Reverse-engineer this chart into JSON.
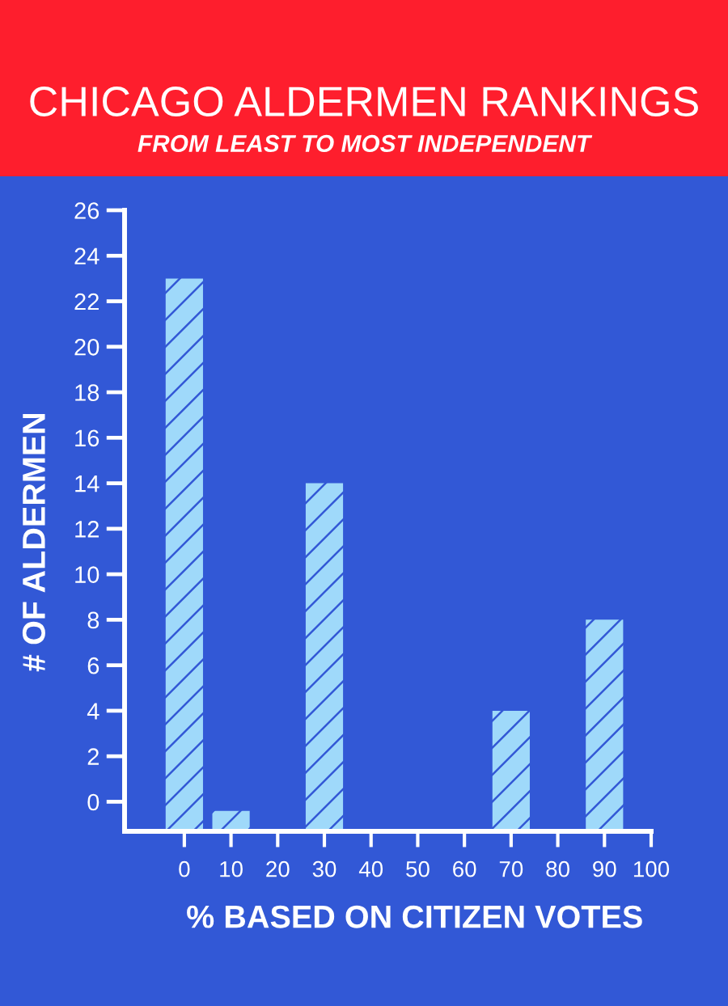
{
  "chart_data": {
    "type": "bar",
    "title": "CHICAGO ALDERMEN RANKINGS",
    "subtitle": "FROM LEAST TO MOST INDEPENDENT",
    "xlabel": "% BASED ON CITIZEN VOTES",
    "ylabel": "# OF ALDERMEN",
    "x": [
      0,
      10,
      30,
      70,
      90
    ],
    "values": [
      24.2,
      0.8,
      15.2,
      5.2,
      9.2
    ],
    "base": [
      -1.2,
      -1.2,
      -1.2,
      -1.2,
      -1.2
    ],
    "color": "#9fd9fa",
    "xlim": [
      -12.8,
      100
    ],
    "xticks": [
      0,
      10,
      20,
      30,
      40,
      50,
      60,
      70,
      80,
      90,
      100
    ],
    "ylim": [
      -1.3,
      26
    ],
    "yticks": [
      0,
      2,
      4,
      6,
      8,
      10,
      12,
      14,
      16,
      18,
      20,
      22,
      24,
      26
    ]
  }
}
